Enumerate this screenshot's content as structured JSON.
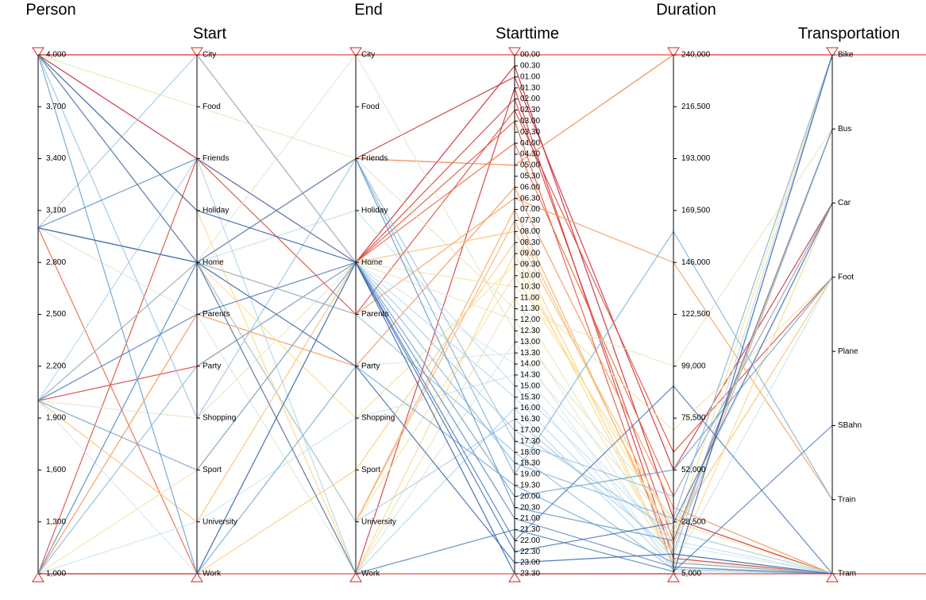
{
  "chart_data": {
    "type": "parallel",
    "axes": [
      {
        "name": "Person",
        "ylim": [
          1000,
          4000
        ],
        "yticks": [
          {
            "value": 1000,
            "label": "1,000"
          },
          {
            "value": 1300,
            "label": "1,300"
          },
          {
            "value": 1600,
            "label": "1,600"
          },
          {
            "value": 1900,
            "label": "1,900"
          },
          {
            "value": 2200,
            "label": "2,200"
          },
          {
            "value": 2500,
            "label": "2,500"
          },
          {
            "value": 2800,
            "label": "2,800"
          },
          {
            "value": 3100,
            "label": "3,100"
          },
          {
            "value": 3400,
            "label": "3,400"
          },
          {
            "value": 3700,
            "label": "3,700"
          },
          {
            "value": 4000,
            "label": "4,000"
          }
        ]
      },
      {
        "name": "Start",
        "categories": [
          "City",
          "Food",
          "Friends",
          "Holiday",
          "Home",
          "Parents",
          "Party",
          "Shopping",
          "Sport",
          "University",
          "Work"
        ]
      },
      {
        "name": "End",
        "categories": [
          "City",
          "Food",
          "Friends",
          "Holiday",
          "Home",
          "Parents",
          "Party",
          "Shopping",
          "Sport",
          "University",
          "Work"
        ]
      },
      {
        "name": "Starttime",
        "categories": [
          "00.00",
          "00.30",
          "01.00",
          "01.30",
          "02.00",
          "02.30",
          "03.00",
          "03.30",
          "04.00",
          "04.30",
          "05.00",
          "05.30",
          "06.00",
          "06.30",
          "07.00",
          "07.30",
          "08.00",
          "08.30",
          "09.00",
          "09.30",
          "10.00",
          "10.30",
          "11.00",
          "11.30",
          "12.00",
          "12.30",
          "13.00",
          "13.30",
          "14.00",
          "14.30",
          "15.00",
          "15.30",
          "16.00",
          "16.30",
          "17.00",
          "17.30",
          "18.00",
          "18.30",
          "19.00",
          "19.30",
          "20.00",
          "20.30",
          "21.00",
          "21.30",
          "22.00",
          "22.30",
          "23.00",
          "23.30"
        ]
      },
      {
        "name": "Duration",
        "ylim": [
          5000,
          240000
        ],
        "yticks": [
          {
            "value": 5000,
            "label": "5,000"
          },
          {
            "value": 28500,
            "label": "28,500"
          },
          {
            "value": 52000,
            "label": "52,000"
          },
          {
            "value": 75500,
            "label": "75,500"
          },
          {
            "value": 99000,
            "label": "99,000"
          },
          {
            "value": 122500,
            "label": "122,500"
          },
          {
            "value": 146000,
            "label": "146,000"
          },
          {
            "value": 169500,
            "label": "169,500"
          },
          {
            "value": 193000,
            "label": "193,000"
          },
          {
            "value": 216500,
            "label": "216,500"
          },
          {
            "value": 240000,
            "label": "240,000"
          }
        ]
      },
      {
        "name": "Transportation",
        "categories": [
          "Bike",
          "Bus",
          "Car",
          "Foot",
          "Plane",
          "SBahn",
          "Train",
          "Tram"
        ]
      }
    ],
    "color_scale": [
      "#c0102a",
      "#f0703a",
      "#fde08a",
      "#cfe8f3",
      "#80b4d8",
      "#2c5aa6"
    ],
    "records": [
      [
        4000,
        "Friends",
        "Home",
        "00.30",
        30000,
        "Tram"
      ],
      [
        4000,
        "Home",
        "Friends",
        "01.00",
        52000,
        "Car"
      ],
      [
        3000,
        "Home",
        "Work",
        "01.30",
        12000,
        "Tram"
      ],
      [
        2000,
        "Party",
        "Home",
        "02.00",
        20000,
        "Bus"
      ],
      [
        1000,
        "Friends",
        "Parents",
        "02.30",
        60000,
        "Foot"
      ],
      [
        4000,
        "City",
        "Home",
        "03.00",
        8000,
        "Tram"
      ],
      [
        3000,
        "Work",
        "Home",
        "04.00",
        40000,
        "Car"
      ],
      [
        2000,
        "Home",
        "Friends",
        "05.00",
        240000,
        "Bike"
      ],
      [
        1000,
        "Parents",
        "Party",
        "06.00",
        35000,
        "Tram"
      ],
      [
        4000,
        "Home",
        "Parents",
        "06.30",
        146000,
        "Train"
      ],
      [
        3000,
        "Home",
        "University",
        "07.00",
        15000,
        "Bus"
      ],
      [
        3000,
        "Home",
        "University",
        "07.30",
        18000,
        "Bus"
      ],
      [
        2000,
        "University",
        "Home",
        "08.00",
        25000,
        "Foot"
      ],
      [
        1000,
        "Work",
        "Sport",
        "08.30",
        10000,
        "Tram"
      ],
      [
        4000,
        "Holiday",
        "Work",
        "09.00",
        9000,
        "Car"
      ],
      [
        3000,
        "Home",
        "Shopping",
        "09.30",
        22000,
        "Bike"
      ],
      [
        2000,
        "Home",
        "University",
        "10.00",
        28500,
        "Tram"
      ],
      [
        1000,
        "Sport",
        "Home",
        "10.30",
        70000,
        "Foot"
      ],
      [
        3000,
        "Home",
        "Work",
        "11.00",
        14000,
        "Tram"
      ],
      [
        4000,
        "Food",
        "Friends",
        "11.30",
        99000,
        "Bus"
      ],
      [
        2000,
        "Shopping",
        "Home",
        "12.00",
        11000,
        "Tram"
      ],
      [
        1000,
        "Home",
        "City",
        "12.30",
        30000,
        "Bike"
      ],
      [
        3000,
        "Parents",
        "Work",
        "13.00",
        6000,
        "Tram"
      ],
      [
        4000,
        "Home",
        "Party",
        "13.30",
        26000,
        "Car"
      ],
      [
        2000,
        "Work",
        "Home",
        "14.00",
        18000,
        "Tram"
      ],
      [
        1000,
        "University",
        "Shopping",
        "14.30",
        9000,
        "Foot"
      ],
      [
        3000,
        "Home",
        "Holiday",
        "15.00",
        20000,
        "Tram"
      ],
      [
        4000,
        "Work",
        "Home",
        "15.30",
        12000,
        "Bike"
      ],
      [
        2000,
        "Friends",
        "Work",
        "16.00",
        8000,
        "Tram"
      ],
      [
        1000,
        "Home",
        "University",
        "16.30",
        15000,
        "Bus"
      ],
      [
        3000,
        "City",
        "Home",
        "17.00",
        24000,
        "Tram"
      ],
      [
        4000,
        "Shopping",
        "Friends",
        "17.30",
        40000,
        "Car"
      ],
      [
        2000,
        "Home",
        "Parents",
        "18.00",
        7000,
        "Tram"
      ],
      [
        1000,
        "Party",
        "Home",
        "18.30",
        30000,
        "Bike"
      ],
      [
        3000,
        "Home",
        "Friends",
        "19.00",
        160000,
        "Train"
      ],
      [
        4000,
        "Work",
        "Party",
        "19.30",
        10000,
        "Tram"
      ],
      [
        2000,
        "Sport",
        "Home",
        "20.00",
        52000,
        "Foot"
      ],
      [
        1000,
        "Home",
        "Friends",
        "20.30",
        20000,
        "Bus"
      ],
      [
        3000,
        "Friends",
        "Home",
        "21.00",
        8000,
        "Tram"
      ],
      [
        4000,
        "Home",
        "Work",
        "21.30",
        6000,
        "SBahn"
      ],
      [
        2000,
        "Parents",
        "Home",
        "22.00",
        90000,
        "Tram"
      ],
      [
        1000,
        "Work",
        "Home",
        "22.30",
        28000,
        "Car"
      ],
      [
        3000,
        "Home",
        "Party",
        "23.00",
        14000,
        "Tram"
      ],
      [
        4000,
        "Holiday",
        "Home",
        "23.30",
        5000,
        "Bike"
      ]
    ]
  }
}
